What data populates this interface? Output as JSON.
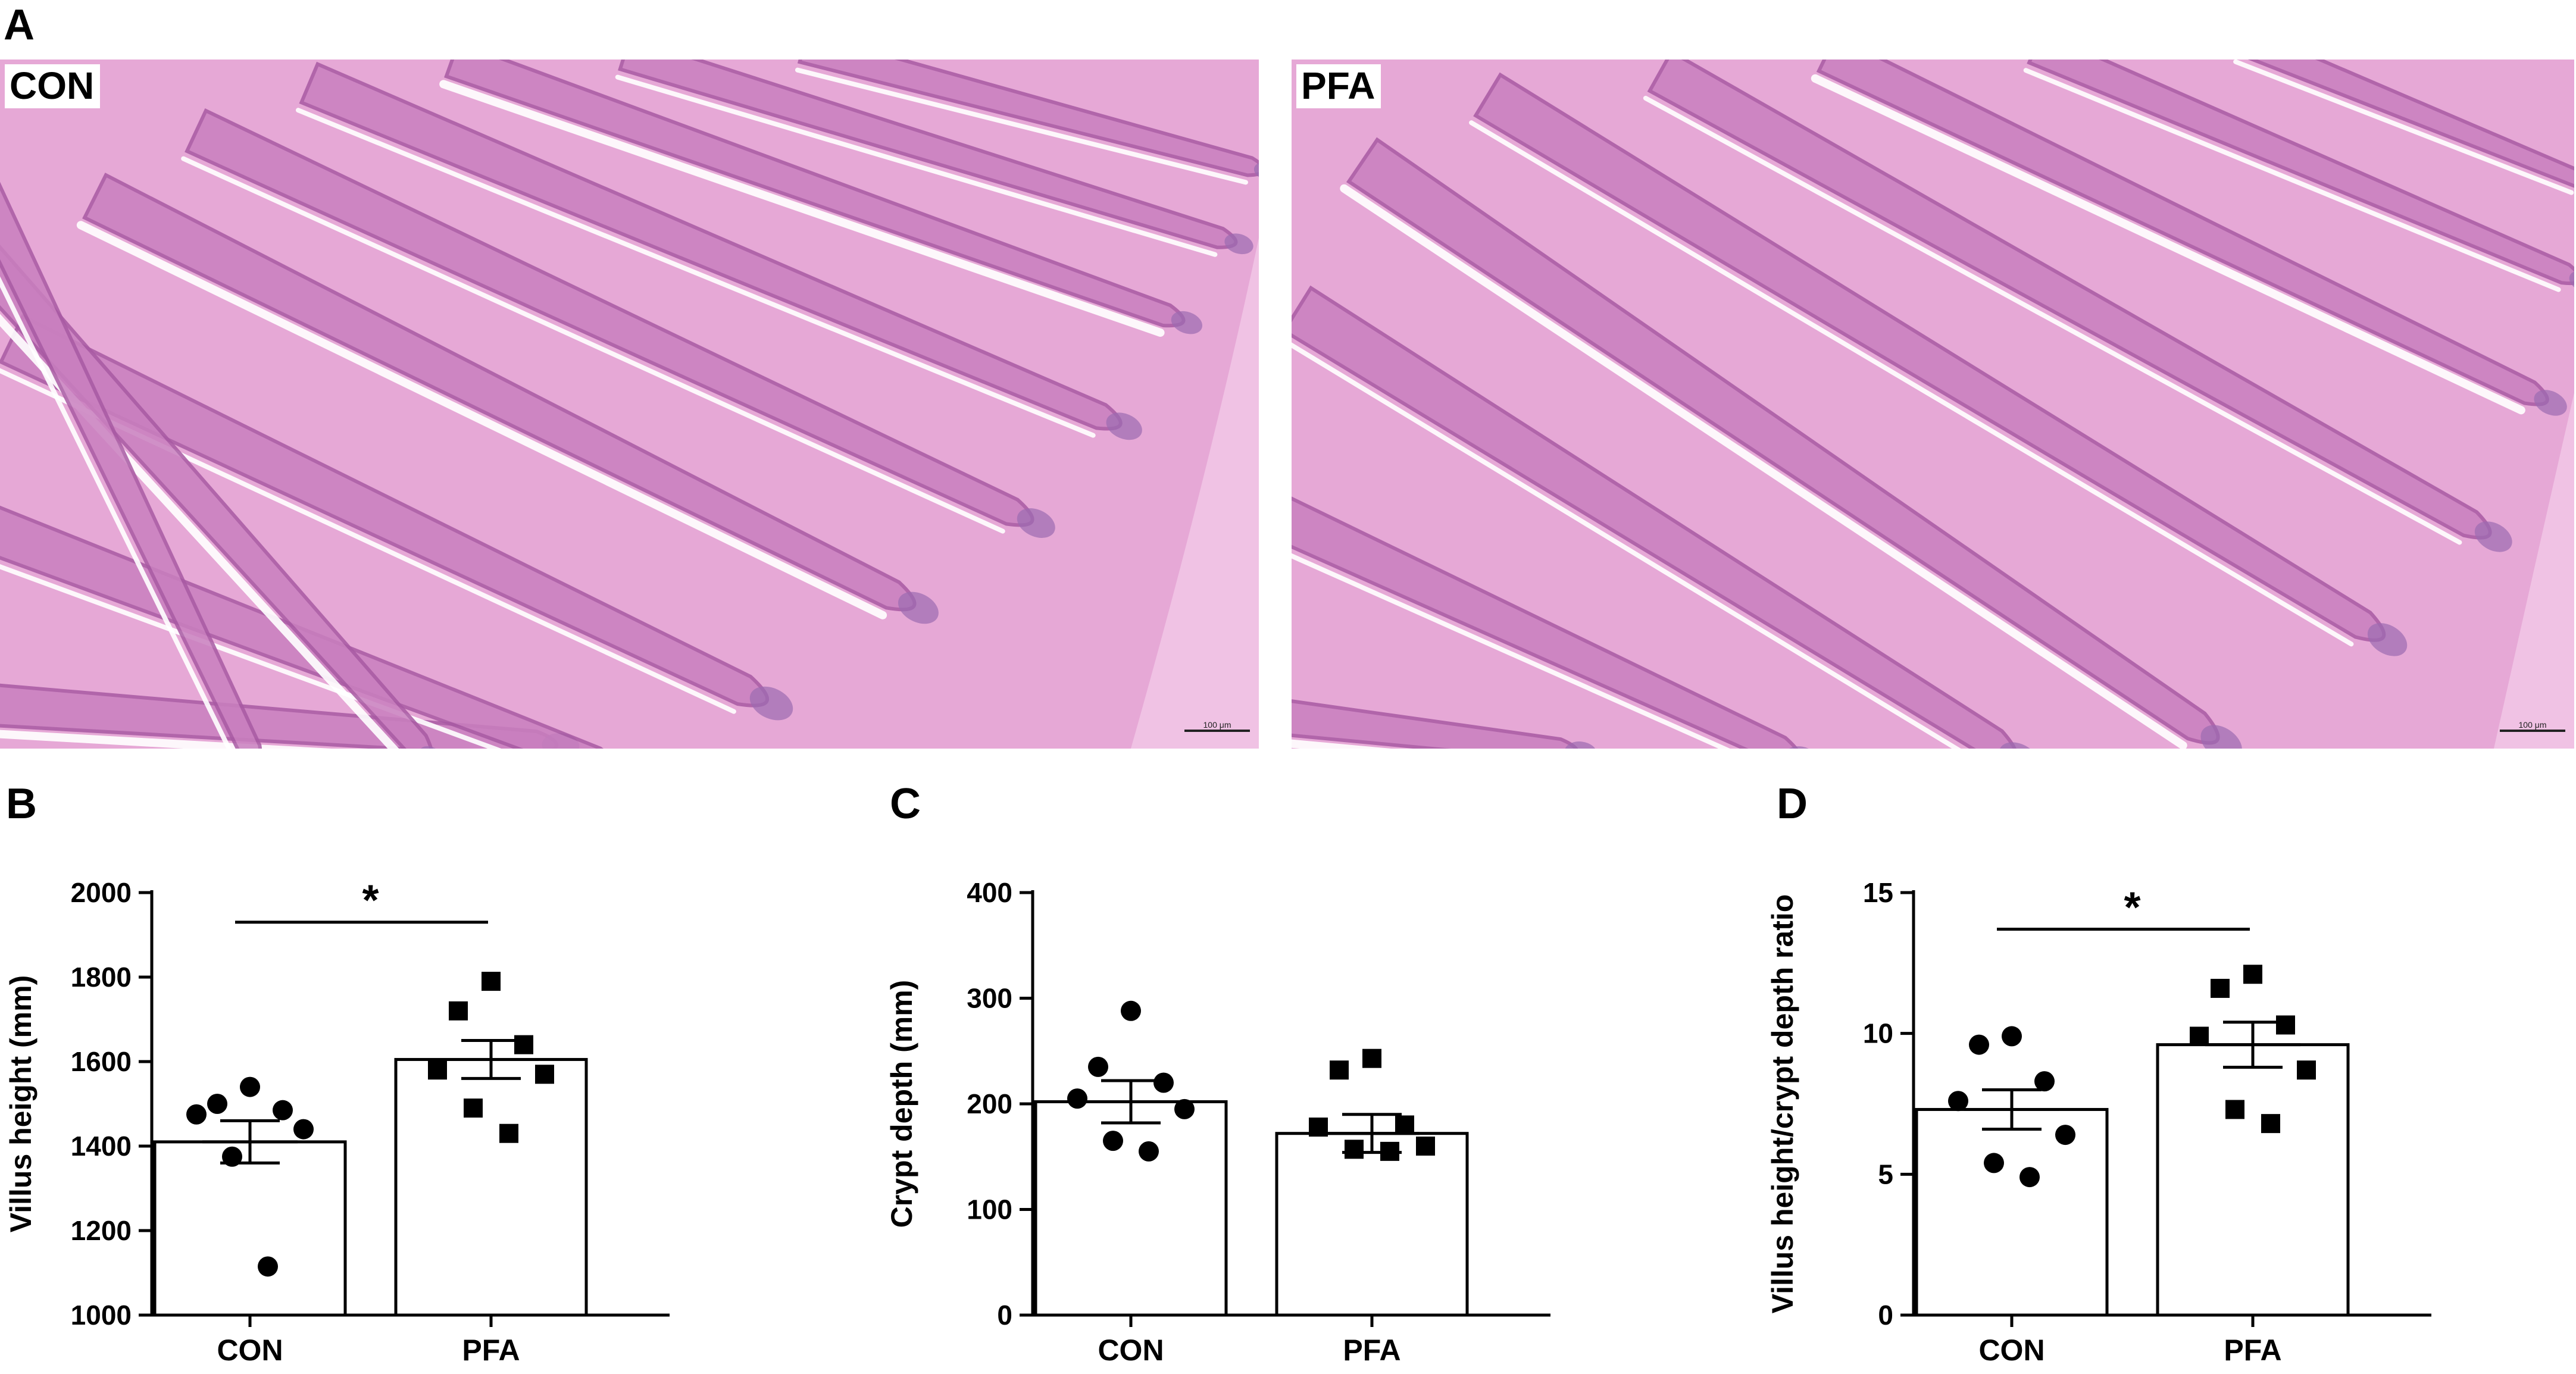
{
  "panels": {
    "a_letter": "A",
    "b_letter": "B",
    "c_letter": "C",
    "d_letter": "D"
  },
  "micrographs": [
    {
      "label": "CON",
      "scale_bar": "100 μm"
    },
    {
      "label": "PFA",
      "scale_bar": "100 μm"
    }
  ],
  "colors": {
    "tissue_bg": "#e6a8d6",
    "villus_fill": "#c97fbf",
    "villus_edge": "#a85aa3",
    "lumen": "#ffffff",
    "crypt": "#9b6bb0",
    "muscularis": "#f0c2e4",
    "bar_fill": "#ffffff",
    "ink": "#000000"
  },
  "chart_data": [
    {
      "type": "bar",
      "panel": "B",
      "categories": [
        "CON",
        "PFA"
      ],
      "values": [
        1410,
        1605
      ],
      "sem": [
        50,
        45
      ],
      "points": [
        [
          1540,
          1500,
          1485,
          1475,
          1440,
          1375,
          1115
        ],
        [
          1790,
          1720,
          1640,
          1580,
          1570,
          1490,
          1430
        ]
      ],
      "markers": [
        "circle",
        "square"
      ],
      "xlabel": "",
      "ylabel": "Villus height (mm)",
      "ylim": [
        1000,
        2000
      ],
      "yticks": [
        1000,
        1200,
        1400,
        1600,
        1800,
        2000
      ],
      "significance": {
        "label": "*",
        "level": 1930
      }
    },
    {
      "type": "bar",
      "panel": "C",
      "categories": [
        "CON",
        "PFA"
      ],
      "values": [
        202,
        172
      ],
      "sem": [
        20,
        18
      ],
      "points": [
        [
          288,
          235,
          220,
          205,
          195,
          165,
          155
        ],
        [
          243,
          232,
          180,
          178,
          160,
          157,
          155
        ]
      ],
      "markers": [
        "circle",
        "square"
      ],
      "xlabel": "",
      "ylabel": "Crypt depth (mm)",
      "ylim": [
        0,
        400
      ],
      "yticks": [
        0,
        100,
        200,
        300,
        400
      ],
      "significance": null
    },
    {
      "type": "bar",
      "panel": "D",
      "categories": [
        "CON",
        "PFA"
      ],
      "values": [
        7.3,
        9.6
      ],
      "sem": [
        0.7,
        0.8
      ],
      "points": [
        [
          9.9,
          9.6,
          8.3,
          7.6,
          6.4,
          5.4,
          4.9
        ],
        [
          12.1,
          11.6,
          10.3,
          9.9,
          8.7,
          7.3,
          6.8
        ]
      ],
      "markers": [
        "circle",
        "square"
      ],
      "xlabel": "",
      "ylabel": "Villus height/crypt depth ratio",
      "ylim": [
        0,
        15
      ],
      "yticks": [
        0,
        5,
        10,
        15
      ],
      "significance": {
        "label": "*",
        "level": 13.7
      }
    }
  ]
}
